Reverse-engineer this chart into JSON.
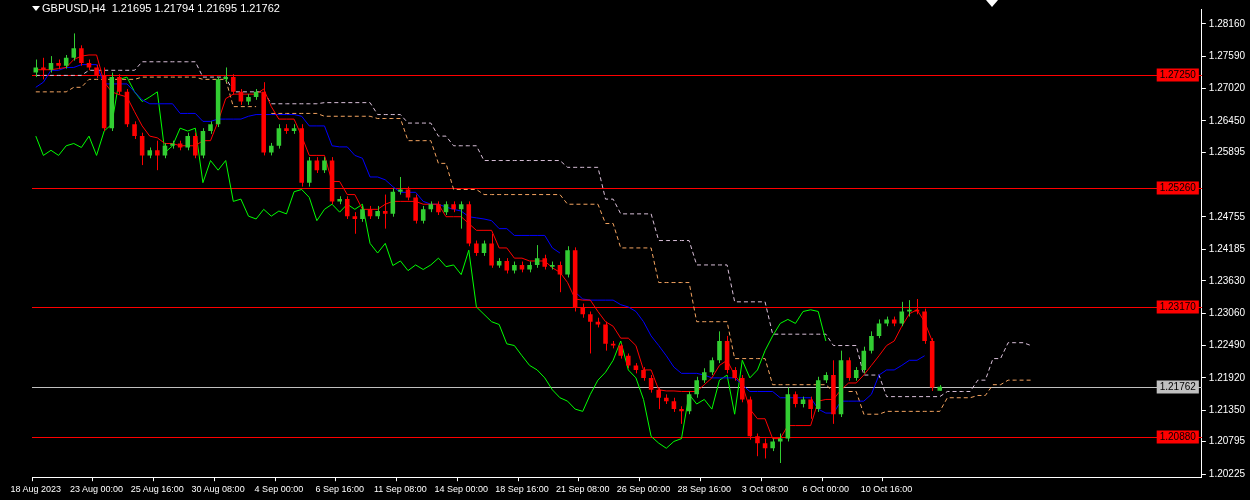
{
  "chart_data": {
    "type": "candlestick",
    "title": "GBPUSD,H4  1.21695 1.21794 1.21695 1.21762",
    "categories": [
      "18 Aug 2023",
      null,
      null,
      null,
      null,
      null,
      null,
      null,
      "23 Aug 00:00",
      null,
      null,
      null,
      null,
      null,
      null,
      null,
      "25 Aug 16:00",
      null,
      null,
      null,
      null,
      null,
      null,
      null,
      "30 Aug 08:00",
      null,
      null,
      null,
      null,
      null,
      null,
      null,
      "4 Sep 00:00",
      null,
      null,
      null,
      null,
      null,
      null,
      null,
      "6 Sep 16:00",
      null,
      null,
      null,
      null,
      null,
      null,
      null,
      "11 Sep 08:00",
      null,
      null,
      null,
      null,
      null,
      null,
      null,
      "14 Sep 00:00",
      null,
      null,
      null,
      null,
      null,
      null,
      null,
      "18 Sep 16:00",
      null,
      null,
      null,
      null,
      null,
      null,
      null,
      "21 Sep 08:00",
      null,
      null,
      null,
      null,
      null,
      null,
      null,
      "26 Sep 00:00",
      null,
      null,
      null,
      null,
      null,
      null,
      null,
      "28 Sep 16:00",
      null,
      null,
      null,
      null,
      null,
      null,
      null,
      "3 Oct 08:00",
      null,
      null,
      null,
      null,
      null,
      null,
      null,
      "6 Oct 00:00",
      null,
      null,
      null,
      null,
      null,
      null,
      null,
      "10 Oct 16:00",
      null,
      null,
      null,
      null,
      null,
      null,
      null,
      null,
      null,
      null,
      null,
      null,
      null,
      null,
      null,
      null,
      null,
      null,
      null,
      null,
      null,
      null,
      null,
      null,
      null,
      null,
      null,
      null,
      null,
      null,
      null,
      null,
      null,
      null,
      null,
      null,
      null,
      null,
      null,
      null,
      null
    ],
    "ohlc": [
      [
        1.273,
        1.2753,
        1.2722,
        1.2739
      ],
      [
        1.2739,
        1.2756,
        1.2718,
        1.2735
      ],
      [
        1.2735,
        1.2759,
        1.273,
        1.2747
      ],
      [
        1.2747,
        1.2753,
        1.2737,
        1.2742
      ],
      [
        1.2742,
        1.2761,
        1.2737,
        1.2756
      ],
      [
        1.2756,
        1.2799,
        1.2751,
        1.2773
      ],
      [
        1.2773,
        1.2778,
        1.2742,
        1.2747
      ],
      [
        1.2747,
        1.2753,
        1.2734,
        1.2739
      ],
      [
        1.2739,
        1.2744,
        1.272,
        1.2725
      ],
      [
        1.2725,
        1.2739,
        1.2627,
        1.2632
      ],
      [
        1.2632,
        1.273,
        1.2627,
        1.2722
      ],
      [
        1.2722,
        1.2727,
        1.2691,
        1.2696
      ],
      [
        1.2696,
        1.2701,
        1.2634,
        1.2639
      ],
      [
        1.2639,
        1.2644,
        1.2613,
        1.2618
      ],
      [
        1.2618,
        1.2624,
        1.2567,
        1.2584
      ],
      [
        1.2584,
        1.2598,
        1.2579,
        1.2593
      ],
      [
        1.2593,
        1.261,
        1.2558,
        1.2584
      ],
      [
        1.2584,
        1.2606,
        1.2579,
        1.2601
      ],
      [
        1.2601,
        1.261,
        1.2596,
        1.2605
      ],
      [
        1.2605,
        1.261,
        1.2593,
        1.2598
      ],
      [
        1.2598,
        1.2624,
        1.2593,
        1.2618
      ],
      [
        1.2618,
        1.2624,
        1.2579,
        1.2584
      ],
      [
        1.2584,
        1.2632,
        1.2579,
        1.2627
      ],
      [
        1.2627,
        1.2644,
        1.2622,
        1.2639
      ],
      [
        1.2639,
        1.2722,
        1.2634,
        1.2718
      ],
      [
        1.2718,
        1.2739,
        1.2713,
        1.2722
      ],
      [
        1.2722,
        1.2727,
        1.2691,
        1.2696
      ],
      [
        1.2696,
        1.2701,
        1.2673,
        1.2679
      ],
      [
        1.2679,
        1.2692,
        1.2673,
        1.2687
      ],
      [
        1.2687,
        1.2701,
        1.2682,
        1.2696
      ],
      [
        1.2696,
        1.2713,
        1.2584,
        1.2589
      ],
      [
        1.2589,
        1.2606,
        1.2584,
        1.2601
      ],
      [
        1.2601,
        1.2639,
        1.2596,
        1.2632
      ],
      [
        1.2632,
        1.2639,
        1.2622,
        1.2627
      ],
      [
        1.2627,
        1.2639,
        1.2622,
        1.2632
      ],
      [
        1.2632,
        1.2639,
        1.2529,
        1.2536
      ],
      [
        1.2536,
        1.2581,
        1.2529,
        1.2575
      ],
      [
        1.2575,
        1.2581,
        1.2553,
        1.2558
      ],
      [
        1.2558,
        1.2581,
        1.2553,
        1.2575
      ],
      [
        1.2575,
        1.2581,
        1.2498,
        1.2503
      ],
      [
        1.2503,
        1.2512,
        1.2498,
        1.2507
      ],
      [
        1.2507,
        1.2512,
        1.2472,
        1.2477
      ],
      [
        1.2477,
        1.2484,
        1.2446,
        1.2472
      ],
      [
        1.2472,
        1.2495,
        1.2467,
        1.2489
      ],
      [
        1.2489,
        1.2495,
        1.2472,
        1.2477
      ],
      [
        1.2477,
        1.2495,
        1.2472,
        1.2486
      ],
      [
        1.2486,
        1.2515,
        1.2455,
        1.2481
      ],
      [
        1.2481,
        1.2526,
        1.2476,
        1.252
      ],
      [
        1.252,
        1.2546,
        1.2515,
        1.2524
      ],
      [
        1.2524,
        1.2529,
        1.2505,
        1.251
      ],
      [
        1.251,
        1.2515,
        1.2464,
        1.2469
      ],
      [
        1.2469,
        1.2495,
        1.2464,
        1.2489
      ],
      [
        1.2489,
        1.2503,
        1.2484,
        1.2498
      ],
      [
        1.2498,
        1.2503,
        1.2479,
        1.2484
      ],
      [
        1.2484,
        1.2503,
        1.2479,
        1.2498
      ],
      [
        1.2498,
        1.2503,
        1.2484,
        1.2489
      ],
      [
        1.2489,
        1.2503,
        1.2455,
        1.2498
      ],
      [
        1.2498,
        1.2503,
        1.2424,
        1.2429
      ],
      [
        1.2429,
        1.2434,
        1.2407,
        1.2412
      ],
      [
        1.2412,
        1.2434,
        1.2407,
        1.2429
      ],
      [
        1.2429,
        1.2446,
        1.2386,
        1.239
      ],
      [
        1.239,
        1.2403,
        1.2386,
        1.2398
      ],
      [
        1.2398,
        1.2403,
        1.2376,
        1.2381
      ],
      [
        1.2381,
        1.2397,
        1.2376,
        1.2391
      ],
      [
        1.2391,
        1.2397,
        1.2378,
        1.2383
      ],
      [
        1.2383,
        1.2397,
        1.2378,
        1.2391
      ],
      [
        1.2391,
        1.2426,
        1.2386,
        1.2403
      ],
      [
        1.2403,
        1.2409,
        1.2383,
        1.2388
      ],
      [
        1.2388,
        1.2397,
        1.2383,
        1.2391
      ],
      [
        1.2391,
        1.2397,
        1.2343,
        1.2374
      ],
      [
        1.2374,
        1.2424,
        1.2369,
        1.2417
      ],
      [
        1.2417,
        1.2422,
        1.2309,
        1.2317
      ],
      [
        1.2317,
        1.2323,
        1.2298,
        1.2304
      ],
      [
        1.2304,
        1.2309,
        1.2235,
        1.2291
      ],
      [
        1.2291,
        1.2298,
        1.2281,
        1.2286
      ],
      [
        1.2286,
        1.2291,
        1.224,
        1.2252
      ],
      [
        1.2252,
        1.2257,
        1.2244,
        1.2249
      ],
      [
        1.2249,
        1.2252,
        1.2226,
        1.2231
      ],
      [
        1.2231,
        1.2235,
        1.2209,
        1.2214
      ],
      [
        1.2214,
        1.2218,
        1.22,
        1.2206
      ],
      [
        1.2206,
        1.2211,
        1.2187,
        1.2192
      ],
      [
        1.2192,
        1.2197,
        1.2166,
        1.2171
      ],
      [
        1.2171,
        1.2175,
        1.2137,
        1.2157
      ],
      [
        1.2157,
        1.2163,
        1.2146,
        1.2151
      ],
      [
        1.2151,
        1.2157,
        1.2132,
        1.2137
      ],
      [
        1.2137,
        1.2142,
        1.2111,
        1.2133
      ],
      [
        1.2133,
        1.2168,
        1.2128,
        1.2163
      ],
      [
        1.2163,
        1.2194,
        1.2157,
        1.2188
      ],
      [
        1.2188,
        1.2209,
        1.2183,
        1.2202
      ],
      [
        1.2202,
        1.2228,
        1.2197,
        1.2223
      ],
      [
        1.2223,
        1.2274,
        1.2218,
        1.2257
      ],
      [
        1.2257,
        1.2266,
        1.22,
        1.2206
      ],
      [
        1.2206,
        1.2211,
        1.2187,
        1.2192
      ],
      [
        1.2192,
        1.2197,
        1.2149,
        1.2154
      ],
      [
        1.2154,
        1.2159,
        1.2083,
        1.2089
      ],
      [
        1.2089,
        1.2094,
        1.2054,
        1.2077
      ],
      [
        1.2077,
        1.2085,
        1.205,
        1.2068
      ],
      [
        1.2068,
        1.2085,
        1.2063,
        1.208
      ],
      [
        1.208,
        1.2094,
        1.2042,
        1.2085
      ],
      [
        1.2085,
        1.2175,
        1.208,
        1.2163
      ],
      [
        1.2163,
        1.2168,
        1.214,
        1.2146
      ],
      [
        1.2146,
        1.2159,
        1.214,
        1.2154
      ],
      [
        1.2154,
        1.2159,
        1.212,
        1.2137
      ],
      [
        1.2137,
        1.2194,
        1.2132,
        1.2188
      ],
      [
        1.2188,
        1.2202,
        1.2183,
        1.2197
      ],
      [
        1.2197,
        1.2223,
        1.2111,
        1.2128
      ],
      [
        1.2128,
        1.224,
        1.2123,
        1.2223
      ],
      [
        1.2223,
        1.2228,
        1.2187,
        1.2192
      ],
      [
        1.2192,
        1.2211,
        1.2187,
        1.2206
      ],
      [
        1.2206,
        1.2247,
        1.22,
        1.224
      ],
      [
        1.224,
        1.2274,
        1.2235,
        1.2266
      ],
      [
        1.2266,
        1.2295,
        1.2262,
        1.2288
      ],
      [
        1.2288,
        1.23,
        1.2283,
        1.2295
      ],
      [
        1.2295,
        1.23,
        1.2283,
        1.2288
      ],
      [
        1.2288,
        1.2326,
        1.2283,
        1.2309
      ],
      [
        1.2309,
        1.2329,
        1.23,
        1.2312
      ],
      [
        1.2312,
        1.2331,
        1.2304,
        1.2309
      ],
      [
        1.2309,
        1.2314,
        1.2252,
        1.2257
      ],
      [
        1.2257,
        1.2262,
        1.2169,
        1.2175
      ],
      [
        1.21695,
        1.21794,
        1.21695,
        1.21762
      ],
      null,
      null,
      null,
      null,
      null,
      null,
      null,
      null,
      null,
      null,
      null,
      null,
      null,
      null,
      null,
      null,
      null,
      null,
      null,
      null,
      null,
      null,
      null,
      null,
      null,
      null,
      null,
      null,
      null,
      null,
      null,
      null,
      null,
      null
    ],
    "colors": [
      "#32cd32",
      "#ff0000",
      "#32cd32",
      "#ff0000",
      "#32cd32",
      "#32cd32",
      "#ff0000",
      "#ff0000",
      "#ff0000",
      "#ff0000",
      "#32cd32",
      "#ff0000",
      "#ff0000",
      "#ff0000",
      "#ff0000",
      "#32cd32",
      "#ff0000",
      "#32cd32",
      "#32cd32",
      "#ff0000",
      "#32cd32",
      "#ff0000",
      "#32cd32",
      "#32cd32",
      "#32cd32",
      "#32cd32",
      "#ff0000",
      "#ff0000",
      "#32cd32",
      "#32cd32",
      "#ff0000",
      "#32cd32",
      "#32cd32",
      "#ff0000",
      "#32cd32",
      "#ff0000",
      "#32cd32",
      "#ff0000",
      "#32cd32",
      "#ff0000",
      "#32cd32",
      "#ff0000",
      "#ff0000",
      "#32cd32",
      "#ff0000",
      "#32cd32",
      "#ff0000",
      "#32cd32",
      "#32cd32",
      "#ff0000",
      "#ff0000",
      "#32cd32",
      "#32cd32",
      "#ff0000",
      "#32cd32",
      "#ff0000",
      "#32cd32",
      "#ff0000",
      "#ff0000",
      "#32cd32",
      "#ff0000",
      "#32cd32",
      "#ff0000",
      "#32cd32",
      "#ff0000",
      "#32cd32",
      "#32cd32",
      "#ff0000",
      "#32cd32",
      "#ff0000",
      "#32cd32",
      "#ff0000",
      "#ff0000",
      "#ff0000",
      "#ff0000",
      "#ff0000",
      "#ff0000",
      "#ff0000",
      "#ff0000",
      "#ff0000",
      "#ff0000",
      "#ff0000",
      "#ff0000",
      "#ff0000",
      "#ff0000",
      "#ff0000",
      "#32cd32",
      "#32cd32",
      "#32cd32",
      "#32cd32",
      "#32cd32",
      "#ff0000",
      "#ff0000",
      "#ff0000",
      "#ff0000",
      "#ff0000",
      "#ff0000",
      "#32cd32",
      "#32cd32",
      "#32cd32",
      "#ff0000",
      "#32cd32",
      "#ff0000",
      "#32cd32",
      "#32cd32",
      "#ff0000",
      "#32cd32",
      "#ff0000",
      "#32cd32",
      "#32cd32",
      "#32cd32",
      "#32cd32",
      "#32cd32",
      "#ff0000",
      "#32cd32",
      "#32cd32",
      "#ff0000",
      "#ff0000",
      "#ff0000",
      "#32cd32",
      null,
      null,
      null,
      null,
      null,
      null,
      null,
      null,
      null,
      null,
      null,
      null,
      null,
      null,
      null,
      null,
      null,
      null,
      null,
      null,
      null,
      null,
      null,
      null,
      null,
      null,
      null,
      null,
      null,
      null,
      null,
      null,
      null,
      null
    ],
    "series": [
      {
        "type": "line",
        "color": "#ff0000",
        "values": [
          1.2735,
          1.2735,
          1.2735,
          1.2737,
          1.2739,
          1.2753,
          1.2759,
          1.2761,
          1.2761,
          1.2713,
          1.2696,
          1.2691,
          1.2687,
          1.2661,
          1.2636,
          1.2618,
          1.2615,
          1.2605,
          1.2605,
          1.2601,
          1.2601,
          1.2601,
          1.261,
          1.261,
          1.2644,
          1.2684,
          1.2692,
          1.2692,
          1.2692,
          1.2692,
          1.2701,
          1.267,
          1.2648,
          1.2648,
          1.2648,
          1.2618,
          1.2584,
          1.2584,
          1.2584,
          1.2538,
          1.2538,
          1.2515,
          1.2515,
          1.2489,
          1.2489,
          1.2489,
          1.2498,
          1.2503,
          1.2503,
          1.2503,
          1.2503,
          1.2498,
          1.2498,
          1.2498,
          1.2476,
          1.2476,
          1.2476,
          1.2464,
          1.2452,
          1.2452,
          1.2452,
          1.2421,
          1.2421,
          1.2403,
          1.2403,
          1.2398,
          1.2398,
          1.2398,
          1.2386,
          1.2378,
          1.236,
          1.2331,
          1.2329,
          1.2329,
          1.2309,
          1.2291,
          1.2283,
          1.2262,
          1.2262,
          1.2249,
          1.2206,
          1.2206,
          1.2171,
          1.2169,
          1.2169,
          1.2168,
          1.2168,
          1.2168,
          1.218,
          1.2192,
          1.2214,
          1.2223,
          1.2197,
          1.218,
          1.2137,
          1.212,
          1.212,
          1.2085,
          1.2085,
          1.2108,
          1.2108,
          1.2108,
          1.2108,
          1.2151,
          1.2154,
          1.2154,
          1.2171,
          1.2183,
          1.2183,
          1.2197,
          1.2214,
          1.2231,
          1.2249,
          1.2257,
          1.2283,
          1.2305,
          1.2312,
          1.2291,
          1.2257,
          null,
          null,
          null,
          null,
          null,
          null,
          null,
          null,
          null,
          null,
          null,
          null,
          null,
          null,
          null,
          null,
          null,
          null,
          null,
          null,
          null,
          null,
          null,
          null,
          null,
          null,
          null,
          null,
          null,
          null,
          null,
          null,
          null,
          null,
          null
        ]
      },
      {
        "type": "line",
        "color": "#0000ff",
        "values": [
          1.2704,
          1.2713,
          1.2734,
          1.2734,
          1.2739,
          1.2739,
          1.2744,
          1.2744,
          1.2744,
          1.271,
          1.271,
          1.271,
          1.271,
          1.2696,
          1.2682,
          1.2675,
          1.2675,
          1.2675,
          1.2675,
          1.2658,
          1.2658,
          1.2658,
          1.2644,
          1.2644,
          1.2648,
          1.2648,
          1.2648,
          1.2648,
          1.2653,
          1.2656,
          1.2656,
          1.2656,
          1.2656,
          1.2656,
          1.2656,
          1.2653,
          1.2636,
          1.2636,
          1.2636,
          1.2601,
          1.2599,
          1.2599,
          1.2584,
          1.2579,
          1.2546,
          1.2546,
          1.2541,
          1.2529,
          1.2519,
          1.2519,
          1.2519,
          1.2503,
          1.2498,
          1.2498,
          1.2493,
          1.2489,
          1.2486,
          1.2476,
          1.2474,
          1.2472,
          1.2469,
          1.2455,
          1.2455,
          1.2443,
          1.2443,
          1.2443,
          1.2443,
          1.2443,
          1.2421,
          1.2412,
          null,
          1.2343,
          1.2331,
          1.2329,
          1.2329,
          1.2329,
          1.2329,
          1.2321,
          1.2317,
          1.2309,
          1.2291,
          1.2266,
          1.2249,
          1.2231,
          1.2211,
          1.22,
          1.22,
          1.22,
          1.2197,
          1.2192,
          1.2192,
          1.2192,
          1.2192,
          1.218,
          1.2168,
          1.2168,
          1.2168,
          1.2168,
          1.2157,
          1.2157,
          1.2157,
          1.2157,
          1.2157,
          1.2137,
          1.213,
          1.213,
          1.2151,
          1.2151,
          1.2151,
          1.2151,
          1.2163,
          1.2197,
          1.2206,
          1.2206,
          1.2214,
          1.2223,
          1.2223,
          1.2231,
          null,
          null,
          null,
          null,
          null,
          null,
          null,
          null,
          null,
          null,
          null,
          null,
          null,
          null,
          null,
          null,
          null,
          null,
          null,
          null,
          null,
          null,
          null,
          null,
          null,
          null,
          null,
          null,
          null,
          null,
          null,
          null,
          null,
          null,
          null,
          null
        ]
      },
      {
        "type": "line",
        "color": "#00ff00",
        "values": [
          1.2618,
          1.2584,
          1.2593,
          1.2584,
          1.2601,
          1.2605,
          1.2598,
          1.2618,
          1.2584,
          1.2627,
          1.2639,
          1.2718,
          1.2722,
          1.2696,
          1.2679,
          1.2687,
          1.2696,
          1.2589,
          1.2601,
          1.2632,
          1.2627,
          1.2632,
          1.2536,
          1.2575,
          1.2558,
          1.2575,
          1.2503,
          1.2507,
          1.2477,
          1.2472,
          1.2489,
          1.2477,
          1.2486,
          1.2481,
          1.252,
          1.2524,
          1.251,
          1.2469,
          1.2489,
          1.2498,
          1.2484,
          1.2498,
          1.2489,
          1.2498,
          1.2429,
          1.2412,
          1.2429,
          1.239,
          1.2398,
          1.2381,
          1.2391,
          1.2383,
          1.2391,
          1.2403,
          1.2388,
          1.2391,
          1.2374,
          1.2417,
          1.2317,
          1.2304,
          1.2291,
          1.2286,
          1.2252,
          1.2249,
          1.2231,
          1.2214,
          1.2206,
          1.2192,
          1.2171,
          1.2157,
          1.2151,
          1.2137,
          1.2133,
          1.2163,
          1.2188,
          1.2202,
          1.2223,
          1.2257,
          1.2206,
          1.2192,
          1.2154,
          1.2089,
          1.2077,
          1.2068,
          1.208,
          1.2085,
          1.2163,
          1.2146,
          1.2154,
          1.2137,
          1.2188,
          1.2197,
          1.2128,
          1.2223,
          1.2192,
          1.2206,
          1.224,
          1.2266,
          1.2288,
          1.2295,
          1.2288,
          1.2309,
          1.2312,
          1.2309,
          1.2257,
          null,
          null,
          null,
          null,
          null,
          null,
          null,
          null,
          null,
          null,
          null,
          null,
          null,
          null,
          null,
          null,
          null,
          null,
          null,
          null,
          null,
          null,
          null,
          null,
          null,
          null,
          null,
          null,
          null,
          null,
          null,
          null,
          null,
          null,
          null,
          null,
          null,
          null,
          null,
          null,
          null,
          null,
          null,
          null,
          null,
          null,
          null,
          null,
          null
        ]
      },
      {
        "type": "line",
        "color": "#d8bfd8",
        "line_style": "dashed",
        "values": [
          1.2725,
          1.2725,
          1.2725,
          1.2725,
          1.2725,
          1.2725,
          1.2725,
          1.2734,
          1.2734,
          1.2734,
          1.2734,
          1.2734,
          1.2734,
          1.2734,
          1.2749,
          1.2749,
          1.2749,
          1.2749,
          1.2749,
          1.2749,
          1.2749,
          1.2749,
          1.2722,
          1.2722,
          1.2722,
          1.2722,
          1.2696,
          1.2696,
          1.2696,
          1.2696,
          1.2696,
          1.2675,
          1.2675,
          1.2675,
          1.2675,
          1.2675,
          1.2675,
          1.2675,
          1.2677,
          1.2677,
          1.2677,
          1.2677,
          1.2677,
          1.2677,
          1.2677,
          1.2656,
          1.2656,
          1.2656,
          1.2656,
          1.2641,
          1.2641,
          1.2641,
          1.2641,
          1.2618,
          1.2618,
          1.2601,
          1.2601,
          1.2601,
          1.2601,
          1.2575,
          1.2575,
          1.2575,
          1.2575,
          1.2575,
          1.2575,
          1.2575,
          1.2575,
          1.2575,
          1.2575,
          1.2575,
          1.2563,
          1.2563,
          1.2563,
          1.2563,
          1.2563,
          1.2507,
          1.2507,
          1.2481,
          1.2481,
          1.2481,
          1.2481,
          1.2481,
          1.2434,
          1.2434,
          1.2434,
          1.2434,
          1.2434,
          1.2391,
          1.2391,
          1.2391,
          1.2391,
          1.2391,
          1.2326,
          1.2326,
          1.2326,
          1.2326,
          1.2326,
          1.2269,
          1.2269,
          1.2269,
          1.2269,
          1.2269,
          1.2269,
          1.2269,
          1.2269,
          1.2249,
          1.2249,
          1.2249,
          1.2249,
          1.2197,
          1.2197,
          1.2197,
          1.2159,
          1.2159,
          1.2159,
          1.2159,
          1.2159,
          1.2159,
          1.2159,
          1.2159,
          1.2168,
          1.2168,
          1.2168,
          1.2168,
          1.2188,
          1.2188,
          1.2226,
          1.2226,
          1.2254,
          1.2254,
          1.2254,
          1.2249,
          null,
          null,
          null,
          null,
          null,
          null,
          null,
          null,
          null,
          null,
          null,
          null,
          null,
          null,
          null,
          null,
          null,
          null,
          null,
          null,
          null,
          null
        ]
      },
      {
        "type": "line",
        "color": "#f4a460",
        "line_style": "dashed",
        "values": [
          1.2696,
          1.2696,
          1.2696,
          1.2696,
          1.2696,
          1.2704,
          1.2704,
          1.2718,
          1.2718,
          1.2718,
          1.2718,
          1.2718,
          1.2718,
          1.2718,
          1.2722,
          1.2722,
          1.2722,
          1.2722,
          1.2722,
          1.2722,
          1.2722,
          1.2722,
          1.2718,
          1.2718,
          1.2718,
          1.2718,
          1.267,
          1.267,
          1.267,
          1.267,
          null,
          1.2658,
          1.2658,
          1.2658,
          1.2658,
          1.2658,
          1.2658,
          1.2658,
          1.2653,
          1.2653,
          1.2653,
          1.2653,
          1.2653,
          1.2653,
          1.2653,
          1.2649,
          1.2649,
          1.2649,
          1.2649,
          1.261,
          1.261,
          1.261,
          1.261,
          1.257,
          1.257,
          1.2524,
          1.2524,
          1.2524,
          1.2524,
          1.2515,
          1.2515,
          1.2515,
          1.2515,
          1.2515,
          1.2515,
          1.2515,
          1.2515,
          1.2515,
          1.2515,
          1.2515,
          1.2498,
          1.2498,
          1.2498,
          1.2498,
          1.2498,
          1.2464,
          1.2464,
          1.2421,
          1.2421,
          1.2421,
          1.2421,
          1.2421,
          1.236,
          1.236,
          1.236,
          1.236,
          1.236,
          1.2291,
          1.2291,
          1.2291,
          1.2291,
          1.2291,
          1.2226,
          1.2226,
          1.2226,
          1.2226,
          1.2226,
          1.218,
          1.218,
          1.218,
          1.218,
          1.218,
          1.218,
          1.218,
          1.218,
          1.2168,
          null,
          1.2168,
          1.2168,
          1.2128,
          1.2128,
          1.2128,
          1.2133,
          1.2133,
          1.2133,
          1.2133,
          1.2133,
          1.2133,
          1.2133,
          1.2133,
          1.2157,
          1.2157,
          1.2157,
          1.2157,
          1.2161,
          1.2161,
          1.218,
          1.218,
          1.2188,
          1.2188,
          1.2188,
          1.2188,
          null,
          null,
          null,
          null,
          null,
          null,
          null,
          null,
          null,
          null,
          null,
          null,
          null,
          null,
          null,
          null,
          null,
          null,
          null,
          null,
          null,
          null
        ]
      }
    ],
    "ylim": [
      1.2017,
      1.2842
    ],
    "yticks": [
      {
        "value": 1.2816,
        "label": "1.28160"
      },
      {
        "value": 1.2759,
        "label": "1.27590"
      },
      {
        "value": 1.2702,
        "label": "1.27020"
      },
      {
        "value": 1.2645,
        "label": "1.26450"
      },
      1.25895,
      1.24755,
      1.24185,
      {
        "value": 1.2363,
        "label": "1.23630"
      },
      {
        "value": 1.2306,
        "label": "1.23060"
      },
      {
        "value": 1.2249,
        "label": "1.22490"
      },
      {
        "value": 1.2192,
        "label": "1.21920"
      },
      {
        "value": 1.2135,
        "label": "1.21350"
      },
      1.20795,
      1.20225
    ],
    "ref_lines": [
      {
        "axis": "y",
        "value": 1.2725,
        "label": "1.27250",
        "color": "#ff0000"
      },
      {
        "axis": "y",
        "value": 1.2526,
        "label": "1.25260",
        "color": "#ff0000"
      },
      {
        "axis": "y",
        "value": 1.2317,
        "label": "1.23170",
        "color": "#ff0000"
      },
      {
        "axis": "y",
        "value": 1.2088,
        "label": "1.20880",
        "color": "#ff0000"
      },
      {
        "axis": "y",
        "value": 1.21762,
        "label": "1.21762",
        "color": "#c0c0c0"
      }
    ],
    "grid": false,
    "legend": false
  }
}
